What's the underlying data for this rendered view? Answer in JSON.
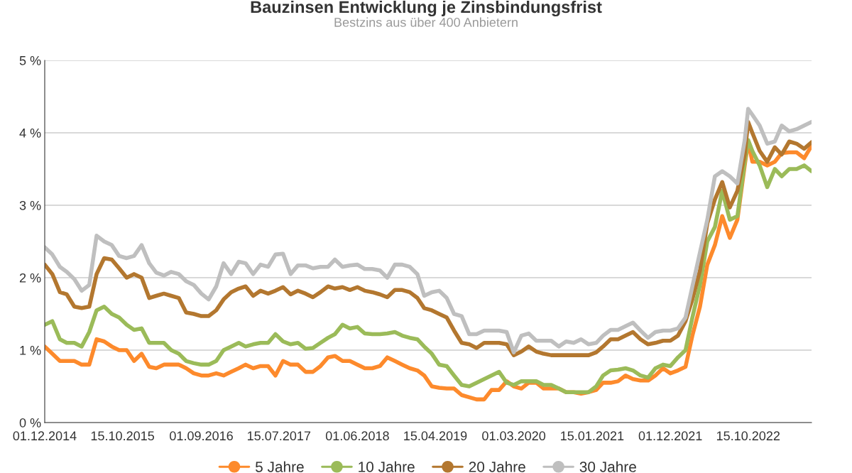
{
  "chart_data": {
    "type": "line",
    "title": "Bauzinsen Entwicklung je Zinsbindungsfrist",
    "subtitle": "Bestzins aus über 400 Anbietern",
    "x": [
      "2014-12-01",
      "2015-01-01",
      "2015-02-01",
      "2015-03-01",
      "2015-04-01",
      "2015-05-01",
      "2015-06-01",
      "2015-07-01",
      "2015-08-01",
      "2015-09-01",
      "2015-10-01",
      "2015-11-01",
      "2015-12-01",
      "2016-01-01",
      "2016-02-01",
      "2016-03-01",
      "2016-04-01",
      "2016-05-01",
      "2016-06-01",
      "2016-07-01",
      "2016-08-01",
      "2016-09-01",
      "2016-10-01",
      "2016-11-01",
      "2016-12-01",
      "2017-01-01",
      "2017-02-01",
      "2017-03-01",
      "2017-04-01",
      "2017-05-01",
      "2017-06-01",
      "2017-07-01",
      "2017-08-01",
      "2017-09-01",
      "2017-10-01",
      "2017-11-01",
      "2017-12-01",
      "2018-01-01",
      "2018-02-01",
      "2018-03-01",
      "2018-04-01",
      "2018-05-01",
      "2018-06-01",
      "2018-07-01",
      "2018-08-01",
      "2018-09-01",
      "2018-10-01",
      "2018-11-01",
      "2018-12-01",
      "2019-01-01",
      "2019-02-01",
      "2019-03-01",
      "2019-04-01",
      "2019-05-01",
      "2019-06-01",
      "2019-07-01",
      "2019-08-01",
      "2019-09-01",
      "2019-10-01",
      "2019-11-01",
      "2019-12-01",
      "2020-01-01",
      "2020-02-01",
      "2020-03-01",
      "2020-04-01",
      "2020-05-01",
      "2020-06-01",
      "2020-07-01",
      "2020-08-01",
      "2020-09-01",
      "2020-10-01",
      "2020-11-01",
      "2020-12-01",
      "2021-01-01",
      "2021-02-01",
      "2021-03-01",
      "2021-04-01",
      "2021-05-01",
      "2021-06-01",
      "2021-07-01",
      "2021-08-01",
      "2021-09-01",
      "2021-10-01",
      "2021-11-01",
      "2021-12-01",
      "2022-01-01",
      "2022-02-01",
      "2022-03-01",
      "2022-04-01",
      "2022-05-01",
      "2022-06-01",
      "2022-07-01",
      "2022-08-01",
      "2022-09-01",
      "2022-10-01",
      "2022-10-15",
      "2022-11-01",
      "2022-12-01",
      "2023-01-01",
      "2023-02-01",
      "2023-03-01",
      "2023-04-01",
      "2023-05-01",
      "2023-06-01",
      "2023-07-01"
    ],
    "series": [
      {
        "name": "5 Jahre",
        "color": "#fd8a2c",
        "values": [
          1.05,
          0.95,
          0.85,
          0.85,
          0.85,
          0.8,
          0.8,
          1.15,
          1.12,
          1.05,
          1.0,
          1.0,
          0.85,
          0.95,
          0.77,
          0.75,
          0.8,
          0.8,
          0.8,
          0.75,
          0.68,
          0.65,
          0.65,
          0.68,
          0.65,
          0.7,
          0.75,
          0.8,
          0.75,
          0.78,
          0.78,
          0.65,
          0.85,
          0.8,
          0.8,
          0.7,
          0.7,
          0.78,
          0.9,
          0.92,
          0.85,
          0.85,
          0.8,
          0.75,
          0.75,
          0.78,
          0.9,
          0.85,
          0.8,
          0.75,
          0.72,
          0.65,
          0.5,
          0.48,
          0.47,
          0.47,
          0.38,
          0.35,
          0.32,
          0.32,
          0.45,
          0.45,
          0.57,
          0.5,
          0.47,
          0.55,
          0.55,
          0.47,
          0.47,
          0.47,
          0.42,
          0.42,
          0.4,
          0.42,
          0.45,
          0.55,
          0.55,
          0.57,
          0.65,
          0.6,
          0.58,
          0.58,
          0.65,
          0.75,
          0.68,
          0.72,
          0.77,
          1.2,
          1.6,
          2.18,
          2.45,
          2.85,
          2.55,
          2.8,
          3.55,
          3.88,
          3.6,
          3.6,
          3.55,
          3.6,
          3.72,
          3.73,
          3.73,
          3.65,
          3.82
        ]
      },
      {
        "name": "10 Jahre",
        "color": "#9bbb59",
        "values": [
          1.35,
          1.4,
          1.15,
          1.1,
          1.1,
          1.05,
          1.25,
          1.55,
          1.6,
          1.5,
          1.45,
          1.35,
          1.28,
          1.3,
          1.1,
          1.1,
          1.1,
          1.0,
          0.95,
          0.85,
          0.82,
          0.8,
          0.8,
          0.85,
          1.0,
          1.05,
          1.1,
          1.05,
          1.08,
          1.1,
          1.1,
          1.22,
          1.12,
          1.08,
          1.1,
          1.02,
          1.03,
          1.1,
          1.17,
          1.22,
          1.35,
          1.3,
          1.32,
          1.23,
          1.22,
          1.22,
          1.23,
          1.25,
          1.2,
          1.17,
          1.15,
          1.05,
          0.95,
          0.8,
          0.78,
          0.65,
          0.52,
          0.5,
          0.55,
          0.6,
          0.65,
          0.7,
          0.55,
          0.52,
          0.57,
          0.57,
          0.57,
          0.52,
          0.52,
          0.47,
          0.42,
          0.42,
          0.42,
          0.42,
          0.5,
          0.65,
          0.72,
          0.73,
          0.75,
          0.72,
          0.65,
          0.62,
          0.75,
          0.8,
          0.78,
          0.9,
          1.0,
          1.45,
          1.9,
          2.5,
          2.7,
          3.2,
          2.8,
          2.85,
          3.6,
          3.9,
          3.75,
          3.55,
          3.25,
          3.5,
          3.4,
          3.5,
          3.5,
          3.55,
          3.47
        ]
      },
      {
        "name": "20 Jahre",
        "color": "#b3772f",
        "values": [
          2.18,
          2.05,
          1.8,
          1.77,
          1.6,
          1.58,
          1.6,
          2.05,
          2.27,
          2.25,
          2.13,
          2.0,
          2.05,
          2.0,
          1.72,
          1.75,
          1.78,
          1.75,
          1.72,
          1.52,
          1.5,
          1.47,
          1.47,
          1.55,
          1.7,
          1.8,
          1.85,
          1.88,
          1.75,
          1.82,
          1.78,
          1.82,
          1.87,
          1.77,
          1.82,
          1.78,
          1.73,
          1.8,
          1.88,
          1.85,
          1.87,
          1.83,
          1.87,
          1.82,
          1.8,
          1.77,
          1.73,
          1.83,
          1.83,
          1.8,
          1.72,
          1.58,
          1.55,
          1.5,
          1.45,
          1.27,
          1.1,
          1.08,
          1.03,
          1.1,
          1.1,
          1.1,
          1.08,
          0.93,
          0.98,
          1.05,
          0.98,
          0.95,
          0.93,
          0.93,
          0.93,
          0.93,
          0.93,
          0.93,
          0.97,
          1.05,
          1.15,
          1.15,
          1.2,
          1.25,
          1.15,
          1.08,
          1.1,
          1.13,
          1.13,
          1.2,
          1.4,
          1.7,
          2.1,
          2.75,
          3.08,
          3.32,
          2.97,
          3.2,
          3.7,
          4.15,
          4.0,
          3.75,
          3.6,
          3.8,
          3.7,
          3.88,
          3.85,
          3.78,
          3.87
        ]
      },
      {
        "name": "30 Jahre",
        "color": "#bfbfbf",
        "values": [
          2.42,
          2.32,
          2.15,
          2.08,
          1.98,
          1.82,
          1.9,
          2.58,
          2.5,
          2.45,
          2.3,
          2.27,
          2.3,
          2.45,
          2.2,
          2.07,
          2.03,
          2.08,
          2.05,
          1.95,
          1.9,
          1.78,
          1.7,
          1.88,
          2.2,
          2.05,
          2.22,
          2.2,
          2.05,
          2.18,
          2.15,
          2.32,
          2.33,
          2.05,
          2.17,
          2.17,
          2.13,
          2.15,
          2.15,
          2.25,
          2.15,
          2.17,
          2.18,
          2.12,
          2.12,
          2.1,
          2.0,
          2.18,
          2.18,
          2.15,
          2.05,
          1.75,
          1.8,
          1.82,
          1.72,
          1.5,
          1.47,
          1.22,
          1.22,
          1.27,
          1.27,
          1.27,
          1.25,
          0.97,
          1.2,
          1.23,
          1.13,
          1.13,
          1.13,
          1.05,
          1.12,
          1.1,
          1.15,
          1.08,
          1.1,
          1.2,
          1.28,
          1.28,
          1.33,
          1.38,
          1.27,
          1.17,
          1.25,
          1.27,
          1.27,
          1.3,
          1.45,
          1.88,
          2.35,
          2.8,
          3.4,
          3.47,
          3.4,
          3.3,
          3.9,
          4.33,
          4.25,
          4.1,
          3.85,
          3.88,
          4.1,
          4.02,
          4.05,
          4.1,
          4.15
        ]
      }
    ],
    "xlim": [
      "2014-12-01",
      "2023-07-01"
    ],
    "xticks": [
      {
        "value": "2014-12-01",
        "label": "01.12.2014"
      },
      {
        "value": "2015-10-15",
        "label": "15.10.2015"
      },
      {
        "value": "2016-09-01",
        "label": "01.09.2016"
      },
      {
        "value": "2017-07-15",
        "label": "15.07.2017"
      },
      {
        "value": "2018-06-01",
        "label": "01.06.2018"
      },
      {
        "value": "2019-04-15",
        "label": "15.04.2019"
      },
      {
        "value": "2020-03-01",
        "label": "01.03.2020"
      },
      {
        "value": "2021-01-15",
        "label": "15.01.2021"
      },
      {
        "value": "2021-12-01",
        "label": "01.12.2021"
      },
      {
        "value": "2022-10-15",
        "label": "15.10.2022"
      }
    ],
    "ylim": [
      0,
      5
    ],
    "yticks": [
      {
        "value": 0,
        "label": "0 %"
      },
      {
        "value": 1,
        "label": "1 %"
      },
      {
        "value": 2,
        "label": "2 %"
      },
      {
        "value": 3,
        "label": "3 %"
      },
      {
        "value": 4,
        "label": "4 %"
      },
      {
        "value": 5,
        "label": "5 %"
      }
    ],
    "grid": "y",
    "legend": "bottom",
    "line_style": "solid"
  }
}
